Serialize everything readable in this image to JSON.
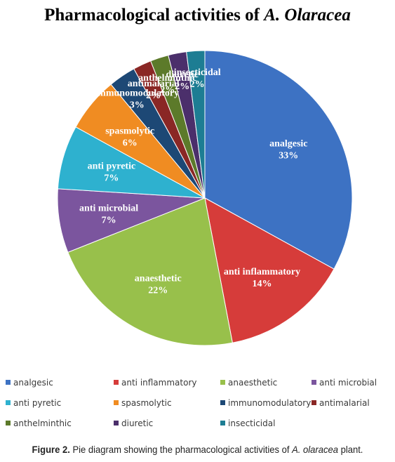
{
  "title": {
    "text": "Pharmacological activities of ",
    "species": "A. Olaracea"
  },
  "chart_data": {
    "type": "pie",
    "title": "Pharmacological activities of A. Olaracea",
    "legend_position": "bottom",
    "slices": [
      {
        "name": "analgesic",
        "value": 33,
        "label": "33%",
        "color": "#3d72c3"
      },
      {
        "name": "anti inflammatory",
        "value": 14,
        "label": "14%",
        "color": "#d63c3a"
      },
      {
        "name": "anaesthetic",
        "value": 22,
        "label": "22%",
        "color": "#98c04b"
      },
      {
        "name": "anti microbial",
        "value": 7,
        "label": "7%",
        "color": "#7b559e"
      },
      {
        "name": "anti pyretic",
        "value": 7,
        "label": "7%",
        "color": "#2eb1cf"
      },
      {
        "name": "spasmolytic",
        "value": 6,
        "label": "6%",
        "color": "#f08c22"
      },
      {
        "name": "immunomodulatory",
        "value": 3,
        "label": "3%",
        "color": "#1d4875"
      },
      {
        "name": "antimalarial",
        "value": 2,
        "label": "2%",
        "color": "#8a2725"
      },
      {
        "name": "anthelminthic",
        "value": 2,
        "label": "2%",
        "color": "#5c7a2a"
      },
      {
        "name": "diuretic",
        "value": 2,
        "label": "2%",
        "color": "#4b2f6b"
      },
      {
        "name": "insecticidal",
        "value": 2,
        "label": "2%",
        "color": "#1d7d93"
      }
    ]
  },
  "caption": {
    "figure": "Figure 2.",
    "text_before": " Pie diagram showing the pharmacological activities of ",
    "species": "A. olaracea",
    "text_after": " plant."
  }
}
